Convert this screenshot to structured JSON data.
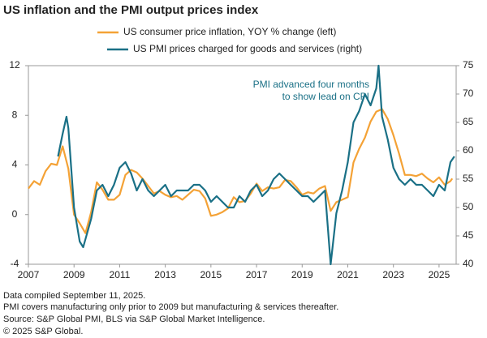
{
  "chart_data": {
    "type": "line",
    "title": "US inflation and the PMI output prices index",
    "annotation": [
      "PMI advanced four months",
      "to show lead on CPI"
    ],
    "footnotes": [
      "Data compiled September 11, 2025.",
      "PMI covers manufacturing only prior to 2009 but manufacturing & services thereafter.",
      "Source: S&P Global PMI, BLS via S&P Global Market Intelligence.",
      "© 2025 S&P Global."
    ],
    "xlim": [
      2007,
      2025.75
    ],
    "xticks": [
      2007,
      2009,
      2011,
      2013,
      2015,
      2017,
      2019,
      2021,
      2023,
      2025
    ],
    "ylim": [
      -4,
      12
    ],
    "yticks": [
      -4,
      0,
      4,
      8,
      12
    ],
    "y2lim": [
      40,
      75
    ],
    "y2ticks": [
      40,
      45,
      50,
      55,
      60,
      65,
      70,
      75
    ],
    "grid": false,
    "series": [
      {
        "name": "US consumer price inflation, YOY % change (left)",
        "color": "#f4a236",
        "x": [
          2007.0,
          2007.25,
          2007.5,
          2007.75,
          2008.0,
          2008.25,
          2008.5,
          2008.75,
          2009.0,
          2009.25,
          2009.5,
          2009.75,
          2010.0,
          2010.25,
          2010.5,
          2010.75,
          2011.0,
          2011.25,
          2011.5,
          2011.75,
          2012.0,
          2012.25,
          2012.5,
          2012.75,
          2013.0,
          2013.25,
          2013.5,
          2013.75,
          2014.0,
          2014.25,
          2014.5,
          2014.75,
          2015.0,
          2015.25,
          2015.5,
          2015.75,
          2016.0,
          2016.25,
          2016.5,
          2016.75,
          2017.0,
          2017.25,
          2017.5,
          2017.75,
          2018.0,
          2018.25,
          2018.5,
          2018.75,
          2019.0,
          2019.25,
          2019.5,
          2019.75,
          2020.0,
          2020.25,
          2020.5,
          2020.75,
          2021.0,
          2021.25,
          2021.5,
          2021.75,
          2022.0,
          2022.25,
          2022.5,
          2022.75,
          2023.0,
          2023.25,
          2023.5,
          2023.75,
          2024.0,
          2024.25,
          2024.5,
          2024.75,
          2025.0,
          2025.25,
          2025.5,
          2025.58
        ],
        "values": [
          2.1,
          2.7,
          2.4,
          3.5,
          4.1,
          4.0,
          5.5,
          3.7,
          0.0,
          -0.7,
          -1.5,
          0.2,
          2.6,
          2.0,
          1.2,
          1.2,
          1.6,
          3.2,
          3.6,
          3.4,
          2.9,
          2.3,
          1.7,
          1.9,
          1.6,
          1.4,
          1.5,
          1.2,
          1.6,
          2.0,
          1.9,
          1.3,
          -0.1,
          0.0,
          0.2,
          0.5,
          1.4,
          1.0,
          1.1,
          1.7,
          2.5,
          1.9,
          2.2,
          2.1,
          2.2,
          2.8,
          2.7,
          2.2,
          1.6,
          1.8,
          1.7,
          2.1,
          2.3,
          0.3,
          1.0,
          1.2,
          1.4,
          4.2,
          5.3,
          6.2,
          7.5,
          8.3,
          8.5,
          7.7,
          6.4,
          4.9,
          3.2,
          3.2,
          3.1,
          3.3,
          2.9,
          2.6,
          3.0,
          2.4,
          2.7,
          2.9
        ]
      },
      {
        "name": "US PMI prices charged for goods and services (right)",
        "color": "#1a7086",
        "axis": "y2",
        "x": [
          2008.3,
          2008.5,
          2008.67,
          2008.75,
          2009.0,
          2009.25,
          2009.4,
          2009.75,
          2010.0,
          2010.25,
          2010.5,
          2010.75,
          2011.0,
          2011.25,
          2011.5,
          2011.75,
          2012.0,
          2012.25,
          2012.5,
          2012.75,
          2013.0,
          2013.25,
          2013.5,
          2013.75,
          2014.0,
          2014.25,
          2014.5,
          2014.75,
          2015.0,
          2015.25,
          2015.5,
          2015.75,
          2016.0,
          2016.25,
          2016.5,
          2016.75,
          2017.0,
          2017.25,
          2017.5,
          2017.75,
          2018.0,
          2018.25,
          2018.5,
          2018.75,
          2019.0,
          2019.25,
          2019.5,
          2019.75,
          2020.0,
          2020.25,
          2020.5,
          2020.75,
          2021.0,
          2021.25,
          2021.5,
          2021.75,
          2022.0,
          2022.25,
          2022.35,
          2022.5,
          2022.75,
          2023.0,
          2023.25,
          2023.5,
          2023.75,
          2024.0,
          2024.25,
          2024.5,
          2024.75,
          2025.0,
          2025.25,
          2025.5,
          2025.67
        ],
        "values": [
          59,
          63,
          66,
          64,
          50,
          44,
          43,
          48,
          53,
          54,
          52,
          54,
          57,
          58,
          56,
          53,
          55,
          53,
          52,
          53,
          54,
          52,
          53,
          53,
          53,
          54,
          54,
          53,
          51,
          52,
          51,
          50,
          50,
          52,
          51,
          53,
          54,
          52,
          53,
          55,
          56,
          55,
          54,
          53,
          52,
          52,
          51,
          52,
          53,
          40,
          49,
          53,
          58,
          65,
          67,
          70,
          68,
          71,
          75,
          66,
          62,
          57,
          55,
          54,
          55,
          54,
          54,
          53,
          52,
          54,
          53,
          58,
          59
        ]
      }
    ]
  }
}
